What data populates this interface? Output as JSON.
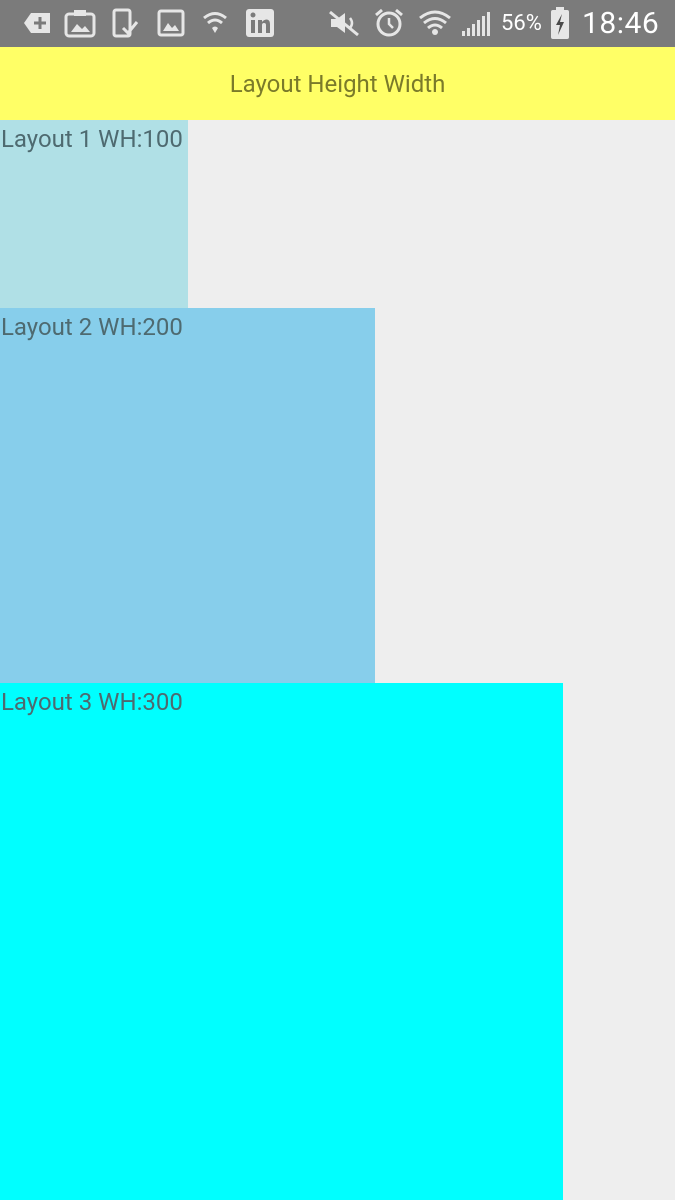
{
  "status_bar": {
    "icons": [
      "add-box-icon",
      "photo-album-icon",
      "phone-check-icon",
      "image-icon",
      "wifi-calling-icon",
      "linkedin-icon",
      "mute-icon",
      "alarm-icon",
      "wifi-icon",
      "signal-icon",
      "battery-charging-icon"
    ],
    "battery_percent": "56%",
    "time": "18:46",
    "background": "#7b7b7b"
  },
  "title_bar": {
    "title": "Layout Height Width",
    "background": "#ffff66"
  },
  "layouts": [
    {
      "label": "Layout 1 WH:100",
      "color": "#b0e0e6"
    },
    {
      "label": "Layout 2 WH:200",
      "color": "#87ceeb"
    },
    {
      "label": "Layout 3 WH:300",
      "color": "#00ffff"
    }
  ]
}
